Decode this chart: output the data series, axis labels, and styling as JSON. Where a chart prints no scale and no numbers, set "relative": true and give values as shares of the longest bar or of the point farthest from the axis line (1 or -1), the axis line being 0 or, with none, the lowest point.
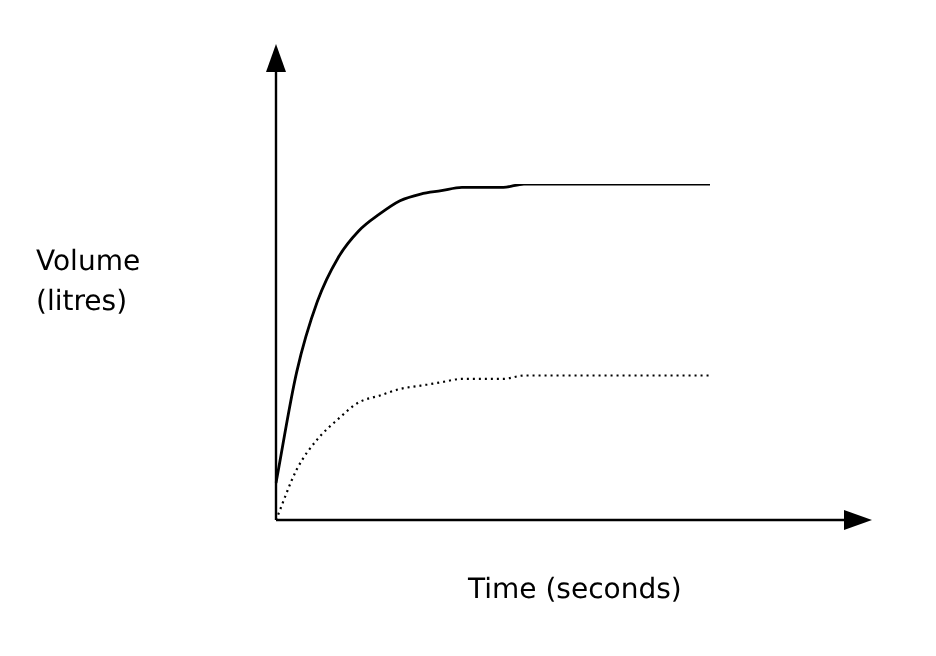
{
  "chart_data": {
    "type": "line",
    "relative": true,
    "xlabel": "Time (seconds)",
    "ylabel": "Volume (litres)",
    "legend": false,
    "marker": "none",
    "categories": [
      null,
      null,
      null,
      null,
      null,
      null,
      null,
      null,
      null,
      null,
      null,
      null,
      null,
      null,
      null,
      null,
      null,
      null,
      null,
      null,
      null,
      null
    ],
    "series": [
      {
        "color": "#000000",
        "line_style": "solid",
        "values": [
          0.11,
          0.44,
          0.65,
          0.78,
          0.86,
          0.91,
          0.95,
          0.97,
          0.98,
          0.99,
          0.99,
          0.99,
          1,
          1,
          1,
          1,
          1,
          1,
          1,
          1,
          1,
          1
        ]
      },
      {
        "color": "#000000",
        "line_style": "dotted",
        "values": [
          0,
          0.15,
          0.24,
          0.3,
          0.35,
          0.37,
          0.39,
          0.4,
          0.41,
          0.42,
          0.42,
          0.42,
          0.43,
          0.43,
          0.43,
          0.43,
          0.43,
          0.43,
          0.43,
          0.43,
          0.43,
          0.43
        ]
      }
    ]
  }
}
